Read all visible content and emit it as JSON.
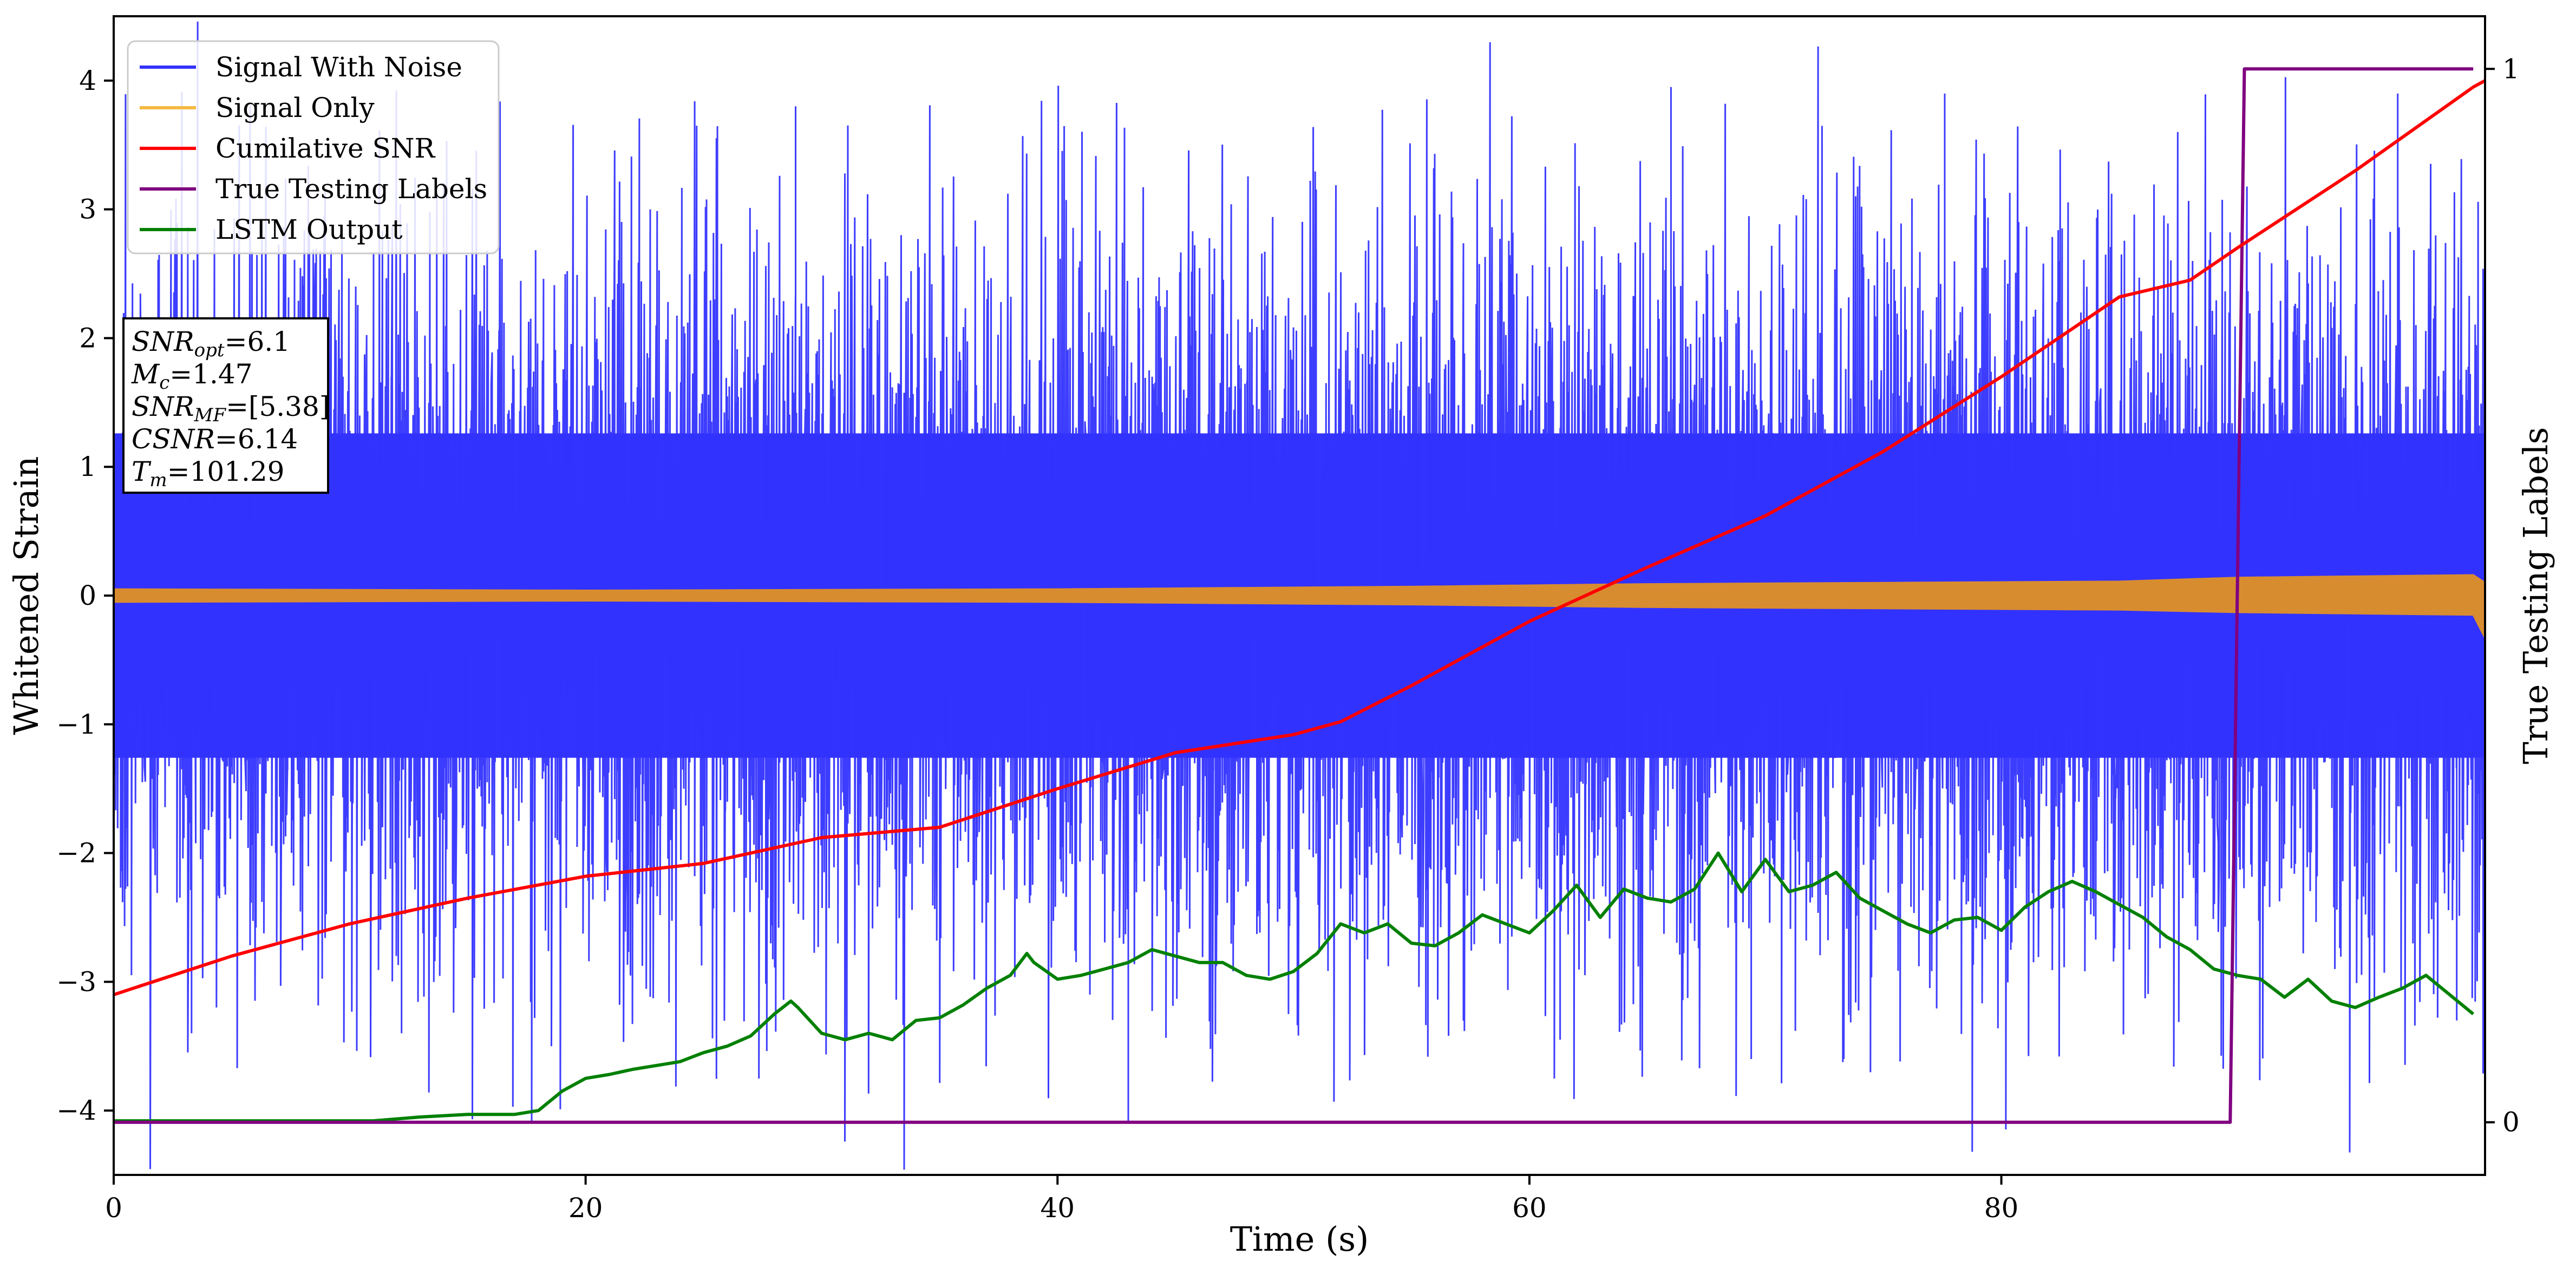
{
  "chart_data": {
    "type": "line",
    "xlabel": "Time (s)",
    "ylabel": "Whitened Strain",
    "ylabel_right": "True Testing Labels",
    "xlim": [
      0,
      100.5
    ],
    "ylim": [
      -4.5,
      4.5
    ],
    "ylim_right": [
      -0.05,
      1.05
    ],
    "x_ticks": [
      "0",
      "20",
      "40",
      "60",
      "80"
    ],
    "y_ticks": [
      "−4",
      "−3",
      "−2",
      "−1",
      "0",
      "1",
      "2",
      "3",
      "4"
    ],
    "y_right_ticks": [
      "0",
      "1"
    ],
    "grid": false,
    "legend_position": "upper-left",
    "legend": [
      {
        "label": "Signal With Noise",
        "color": "#3333ff"
      },
      {
        "label": "Signal Only",
        "color": "#f5b942"
      },
      {
        "label": "Cumilative SNR",
        "color": "#ff0000"
      },
      {
        "label": "True Testing Labels",
        "color": "#800080"
      },
      {
        "label": "LSTM Output",
        "color": "#008000"
      }
    ],
    "annotation": [
      {
        "name": "SNR",
        "sub": "opt",
        "value": "=6.1"
      },
      {
        "name": "M",
        "sub": "c",
        "value": "=1.47"
      },
      {
        "name": "SNR",
        "sub": "MF",
        "value": "=[5.38]"
      },
      {
        "name": "CSNR",
        "sub": "",
        "value": "=6.14"
      },
      {
        "name": "T",
        "sub": "m",
        "value": "=101.29"
      }
    ],
    "series": [
      {
        "name": "Signal With Noise",
        "axis": "left",
        "style": "dense noise band",
        "color": "#3333ff",
        "x_range": [
          0,
          100.5
        ],
        "typical_envelope": [
          -1.2,
          1.2
        ],
        "notable_peaks": [
          [
            3.3,
            -3.4
          ],
          [
            12.2,
            -3.4
          ],
          [
            28.9,
            3.8
          ],
          [
            43.0,
            -4.1
          ],
          [
            61.3,
            -3.45
          ],
          [
            66.0,
            3.95
          ],
          [
            69.4,
            -3.6
          ],
          [
            77.6,
            3.9
          ],
          [
            96.8,
            3.9
          ],
          [
            99.3,
            -3.3
          ]
        ]
      },
      {
        "name": "Signal Only",
        "axis": "left",
        "style": "thin chirp band",
        "color": "#d88c30",
        "x": [
          0,
          20,
          40,
          55,
          65,
          75,
          85,
          90,
          95,
          100,
          100.5
        ],
        "upper": [
          0.05,
          0.04,
          0.05,
          0.07,
          0.09,
          0.1,
          0.11,
          0.14,
          0.15,
          0.16,
          0.1
        ],
        "lower": [
          -0.05,
          -0.04,
          -0.05,
          -0.07,
          -0.09,
          -0.1,
          -0.11,
          -0.13,
          -0.14,
          -0.15,
          -0.33
        ]
      },
      {
        "name": "Cumilative SNR",
        "axis": "left",
        "color": "#ff0000",
        "x": [
          0,
          5,
          10,
          15,
          20,
          25,
          30,
          35,
          40,
          45,
          50,
          52,
          55,
          60,
          65,
          70,
          75,
          80,
          85,
          88,
          90,
          95,
          100,
          100.5
        ],
        "y": [
          -3.1,
          -2.8,
          -2.55,
          -2.35,
          -2.18,
          -2.08,
          -1.88,
          -1.8,
          -1.5,
          -1.22,
          -1.08,
          -0.98,
          -0.7,
          -0.2,
          0.22,
          0.62,
          1.12,
          1.7,
          2.32,
          2.45,
          2.7,
          3.3,
          3.95,
          4.0
        ]
      },
      {
        "name": "True Testing Labels",
        "axis": "right",
        "color": "#800080",
        "x": [
          0,
          89.7,
          90.3,
          100
        ],
        "y": [
          0,
          0,
          1,
          1
        ]
      },
      {
        "name": "LSTM Output",
        "axis": "left",
        "color": "#008000",
        "x": [
          0,
          11,
          13,
          15,
          17,
          18,
          19,
          20,
          21,
          22,
          23,
          24,
          25,
          26,
          27,
          28,
          28.7,
          29,
          30,
          31,
          32,
          33,
          34,
          35,
          36,
          37,
          38,
          38.7,
          39,
          40,
          41,
          42,
          43,
          44,
          45,
          46,
          47,
          48,
          49,
          50,
          51,
          52,
          53,
          54,
          55,
          56,
          57,
          58,
          59,
          60,
          61,
          62,
          63,
          64,
          65,
          66,
          67,
          68,
          69,
          70,
          71,
          72,
          73,
          74,
          75,
          76,
          77,
          78,
          79,
          80,
          81,
          82,
          83,
          84,
          85,
          86,
          87,
          88,
          89,
          90,
          91,
          92,
          93,
          94,
          95,
          96,
          97,
          98,
          99,
          100
        ],
        "y": [
          -4.08,
          -4.08,
          -4.05,
          -4.03,
          -4.03,
          -4.0,
          -3.85,
          -3.75,
          -3.72,
          -3.68,
          -3.65,
          -3.62,
          -3.55,
          -3.5,
          -3.42,
          -3.25,
          -3.15,
          -3.2,
          -3.4,
          -3.45,
          -3.4,
          -3.45,
          -3.3,
          -3.28,
          -3.18,
          -3.05,
          -2.95,
          -2.78,
          -2.85,
          -2.98,
          -2.95,
          -2.9,
          -2.85,
          -2.75,
          -2.8,
          -2.85,
          -2.85,
          -2.95,
          -2.98,
          -2.92,
          -2.78,
          -2.55,
          -2.62,
          -2.55,
          -2.7,
          -2.72,
          -2.62,
          -2.48,
          -2.55,
          -2.62,
          -2.45,
          -2.25,
          -2.5,
          -2.28,
          -2.35,
          -2.38,
          -2.28,
          -2.0,
          -2.3,
          -2.05,
          -2.3,
          -2.25,
          -2.15,
          -2.35,
          -2.45,
          -2.55,
          -2.62,
          -2.52,
          -2.5,
          -2.6,
          -2.42,
          -2.3,
          -2.22,
          -2.3,
          -2.4,
          -2.5,
          -2.65,
          -2.75,
          -2.9,
          -2.95,
          -2.98,
          -3.12,
          -2.98,
          -3.15,
          -3.2,
          -3.12,
          -3.05,
          -2.95,
          -3.1,
          -3.25
        ]
      }
    ]
  }
}
